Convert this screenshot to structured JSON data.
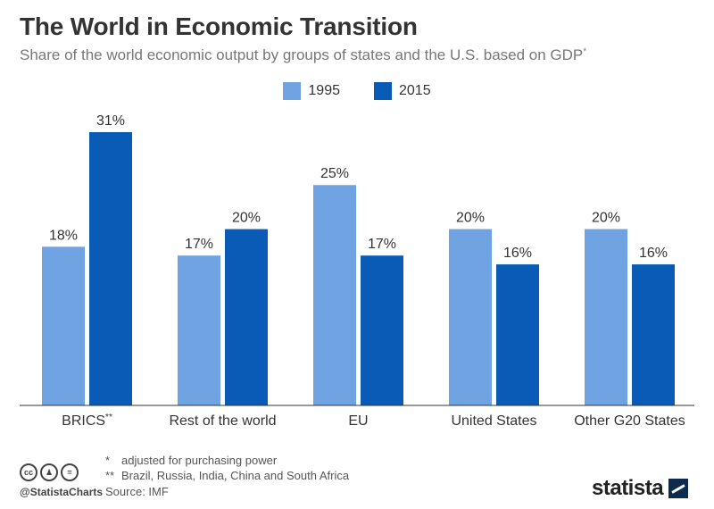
{
  "header": {
    "title": "The World in Economic Transition",
    "subtitle": "Share of the world economic output by groups of states and the U.S. based on GDP",
    "subtitle_mark": "*"
  },
  "legend": [
    {
      "label": "1995",
      "color": "#6fa3e1"
    },
    {
      "label": "2015",
      "color": "#0a5bb5"
    }
  ],
  "chart_data": {
    "type": "bar",
    "title": "The World in Economic Transition",
    "categories": [
      "BRICS**",
      "Rest of the world",
      "EU",
      "United States",
      "Other G20 States"
    ],
    "series": [
      {
        "name": "1995",
        "values": [
          18,
          17,
          25,
          20,
          20
        ],
        "labels": [
          "18%",
          "17%",
          "25%",
          "20%",
          "20%"
        ],
        "color": "#6fa3e1"
      },
      {
        "name": "2015",
        "values": [
          31,
          20,
          17,
          16,
          16
        ],
        "labels": [
          "31%",
          "20%",
          "17%",
          "16%",
          "16%"
        ],
        "color": "#0a5bb5"
      }
    ],
    "ylim": [
      0,
      31
    ],
    "grid": false,
    "legend": "top-center"
  },
  "footnotes": {
    "note1_mark": "*",
    "note1": "adjusted for purchasing power",
    "note2_mark": "**",
    "note2": "Brazil, Russia, India, China and South Africa",
    "source": "Source: IMF"
  },
  "branding": {
    "handle": "@StatistaCharts",
    "logo_text": "statista",
    "license_icons": [
      "cc-icon",
      "person-icon",
      "equals-icon"
    ]
  }
}
